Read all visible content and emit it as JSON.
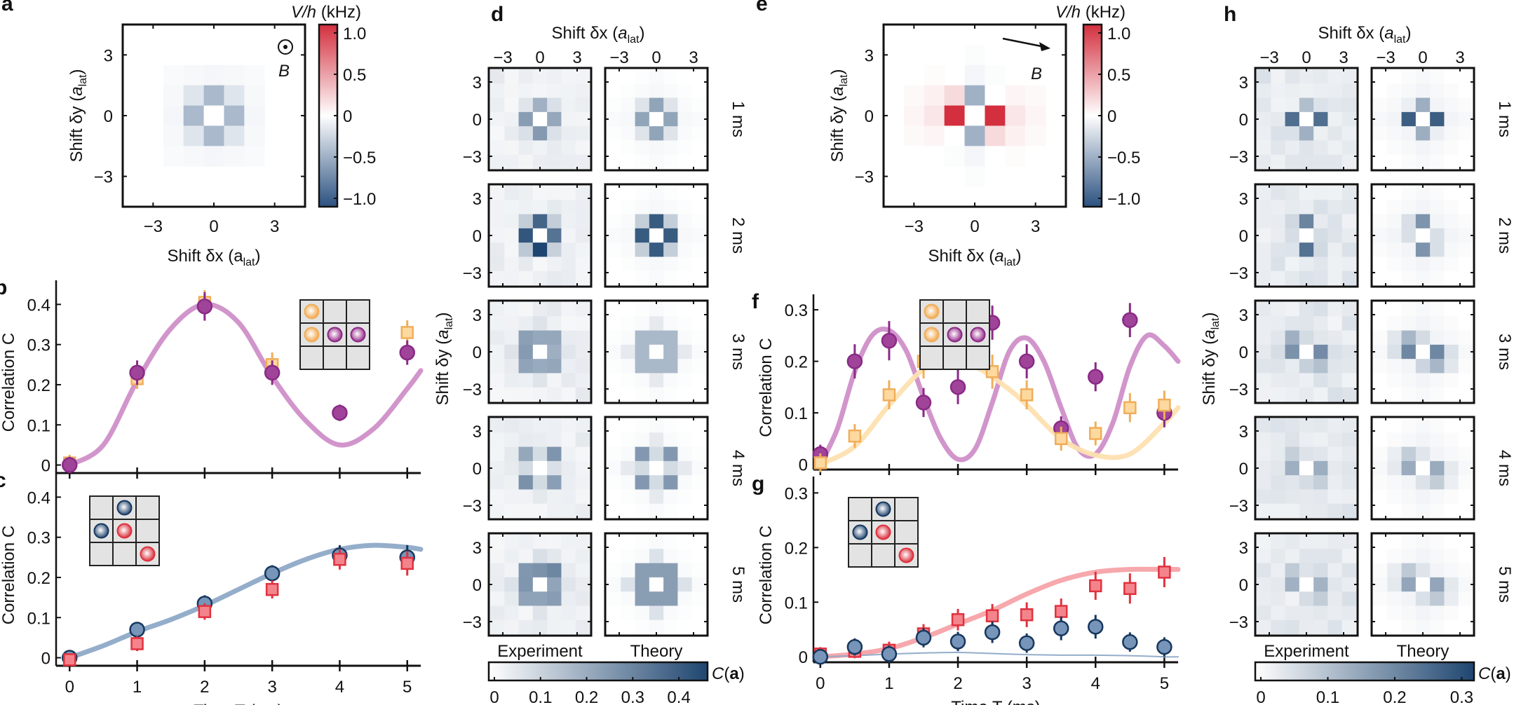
{
  "chart_data": [
    {
      "id": "a",
      "panel_label": "a",
      "type": "heatmap",
      "title": "",
      "xlabel": "Shift δx (a_lat)",
      "ylabel": "Shift δy (a_lat)",
      "xticks": [
        "-3",
        "0",
        "3"
      ],
      "yticks": [
        "3",
        "0",
        "-3"
      ],
      "xlim": [
        -4.5,
        4.5
      ],
      "ylim": [
        -4.5,
        4.5
      ],
      "annotation": "B (out of plane, ⊙)",
      "colorbar": {
        "label": "V/h (kHz)",
        "ticks": [
          "1.0",
          "0.5",
          "0",
          "-0.5",
          "-1.0"
        ],
        "range": [
          -1.0,
          1.0
        ]
      },
      "grid_extent": [
        -2,
        2
      ],
      "values_rows_top_to_bottom": [
        [
          -0.03,
          -0.04,
          -0.05,
          -0.04,
          -0.03
        ],
        [
          -0.04,
          -0.15,
          -0.4,
          -0.15,
          -0.04
        ],
        [
          -0.05,
          -0.4,
          0.0,
          -0.4,
          -0.05
        ],
        [
          -0.04,
          -0.15,
          -0.4,
          -0.15,
          -0.04
        ],
        [
          -0.03,
          -0.04,
          -0.05,
          -0.04,
          -0.03
        ]
      ]
    },
    {
      "id": "b",
      "panel_label": "b",
      "type": "scatter",
      "xlabel": "",
      "ylabel": "Correlation C",
      "xlim": [
        -0.2,
        5.2
      ],
      "ylim": [
        -0.02,
        0.46
      ],
      "yticks": [
        "0",
        "0.1",
        "0.2",
        "0.3",
        "0.4"
      ],
      "inset": "3x3 lattice: orange atoms at (r0,c0),(r1,c0); purple atoms at (r1,c1),(r1,c2)",
      "series": [
        {
          "name": "orange squares",
          "marker": "square",
          "x": [
            0,
            1,
            2,
            3,
            5
          ],
          "y": [
            0.005,
            0.215,
            0.405,
            0.25,
            0.33
          ],
          "err": [
            0.01,
            0.015,
            0.02,
            0.02,
            0.02
          ]
        },
        {
          "name": "purple circles",
          "marker": "circle",
          "x": [
            0,
            1,
            2,
            3,
            4,
            5
          ],
          "y": [
            0.0,
            0.23,
            0.395,
            0.23,
            0.13,
            0.28
          ],
          "err": [
            0.01,
            0.02,
            0.025,
            0.02,
            0.01,
            0.02
          ]
        },
        {
          "name": "theory band (purple)",
          "marker": "band",
          "x": [
            0,
            0.5,
            1,
            1.5,
            2,
            2.5,
            3,
            3.5,
            4,
            4.5,
            5,
            5.2
          ],
          "y": [
            0.0,
            0.05,
            0.21,
            0.34,
            0.4,
            0.355,
            0.22,
            0.11,
            0.05,
            0.09,
            0.19,
            0.235
          ]
        }
      ]
    },
    {
      "id": "c",
      "panel_label": "c",
      "type": "scatter",
      "xlabel": "Time T (ms)",
      "ylabel": "Correlation C",
      "xlim": [
        -0.2,
        5.2
      ],
      "ylim": [
        -0.02,
        0.46
      ],
      "xticks": [
        "0",
        "1",
        "2",
        "3",
        "4",
        "5"
      ],
      "yticks": [
        "0",
        "0.1",
        "0.2",
        "0.3",
        "0.4"
      ],
      "inset": "3x3 lattice: blue atoms at (r0,c1),(r1,c0); red atoms at (r1,c1),(r2,c2)",
      "series": [
        {
          "name": "blue circles",
          "marker": "circle",
          "x": [
            0,
            1,
            2,
            3,
            4,
            5
          ],
          "y": [
            0.0,
            0.07,
            0.135,
            0.21,
            0.255,
            0.25
          ],
          "err": [
            0.005,
            0.008,
            0.01,
            0.01,
            0.015,
            0.02
          ]
        },
        {
          "name": "red squares",
          "marker": "square",
          "x": [
            0,
            1,
            2,
            3,
            4,
            5
          ],
          "y": [
            -0.005,
            0.035,
            0.115,
            0.17,
            0.245,
            0.235
          ],
          "err": [
            0.005,
            0.008,
            0.01,
            0.012,
            0.015,
            0.02
          ]
        },
        {
          "name": "theory band (blue)",
          "marker": "band",
          "x": [
            0,
            0.5,
            1,
            1.5,
            2,
            2.5,
            3,
            3.5,
            4,
            4.5,
            5,
            5.2
          ],
          "y": [
            0.0,
            0.03,
            0.065,
            0.095,
            0.13,
            0.17,
            0.21,
            0.245,
            0.27,
            0.28,
            0.275,
            0.27
          ]
        }
      ]
    },
    {
      "id": "d",
      "panel_label": "d",
      "type": "heatmap",
      "xlabel": "Shift δx (a_lat)",
      "ylabel": "Shift δy (a_lat)",
      "xticks": [
        "-3",
        "0",
        "3"
      ],
      "yticks": [
        "3",
        "0",
        "-3"
      ],
      "columns": [
        "Experiment",
        "Theory"
      ],
      "rows": [
        "1 ms",
        "2 ms",
        "3 ms",
        "4 ms",
        "5 ms"
      ],
      "colorbar": {
        "label": "C(a)",
        "ticks": [
          "0",
          "0.1",
          "0.2",
          "0.3",
          "0.4"
        ],
        "range": [
          0,
          0.45
        ]
      },
      "pattern_peak_values": {
        "1 ms": {
          "experiment": 0.22,
          "theory": 0.22,
          "pattern": "nearest-neighbour cross"
        },
        "2 ms": {
          "experiment": 0.4,
          "theory": 0.4,
          "pattern": "nearest-neighbour cross"
        },
        "3 ms": {
          "experiment": 0.25,
          "theory": 0.2,
          "pattern": "ring 3x3"
        },
        "4 ms": {
          "experiment": 0.24,
          "theory": 0.25,
          "pattern": "diagonal neighbours"
        },
        "5 ms": {
          "experiment": 0.3,
          "theory": 0.28,
          "pattern": "ring 3x3 with diagonals"
        }
      }
    },
    {
      "id": "e",
      "panel_label": "e",
      "type": "heatmap",
      "xlabel": "Shift δx (a_lat)",
      "ylabel": "Shift δy (a_lat)",
      "xticks": [
        "-3",
        "0",
        "3"
      ],
      "yticks": [
        "3",
        "0",
        "-3"
      ],
      "xlim": [
        -4.5,
        4.5
      ],
      "ylim": [
        -4.5,
        4.5
      ],
      "annotation": "B (in-plane arrow)",
      "colorbar": {
        "label": "V/h (kHz)",
        "ticks": [
          "1.0",
          "0.5",
          "0",
          "-0.5",
          "-1.0"
        ],
        "range": [
          -1.0,
          1.0
        ]
      },
      "grid_extent": [
        -3,
        3
      ],
      "values_rows_top_to_bottom": [
        [
          0,
          0,
          0,
          -0.02,
          0,
          0,
          0
        ],
        [
          0,
          0.02,
          0,
          -0.05,
          -0.02,
          0,
          0
        ],
        [
          0.03,
          0.07,
          0.18,
          -0.45,
          0.0,
          0.05,
          0.03
        ],
        [
          0.05,
          0.12,
          1.0,
          0.0,
          1.0,
          0.12,
          0.05
        ],
        [
          0.03,
          0.05,
          0.0,
          -0.45,
          0.18,
          0.07,
          0.03
        ],
        [
          0,
          0,
          -0.02,
          -0.05,
          0,
          0.02,
          0
        ],
        [
          0,
          0,
          0,
          -0.02,
          0,
          0,
          0
        ]
      ]
    },
    {
      "id": "f",
      "panel_label": "f",
      "type": "scatter",
      "xlabel": "",
      "ylabel": "Correlation C",
      "xlim": [
        -0.1,
        5.2
      ],
      "ylim": [
        -0.01,
        0.33
      ],
      "yticks": [
        "0",
        "0.1",
        "0.2",
        "0.3"
      ],
      "inset": "3x3 lattice: orange atoms at (r0,c0),(r1,c0); purple atoms at (r1,c1),(r1,c2)",
      "series": [
        {
          "name": "purple circles",
          "marker": "circle",
          "x": [
            0,
            0.5,
            1,
            1.5,
            2,
            2.5,
            3,
            3.5,
            4,
            4.5,
            5
          ],
          "y": [
            0.02,
            0.2,
            0.24,
            0.12,
            0.15,
            0.275,
            0.2,
            0.07,
            0.17,
            0.28,
            0.1
          ],
          "err": [
            0.01,
            0.025,
            0.03,
            0.02,
            0.025,
            0.025,
            0.025,
            0.015,
            0.02,
            0.025,
            0.02
          ]
        },
        {
          "name": "orange squares",
          "marker": "square",
          "x": [
            0,
            0.5,
            1,
            1.5,
            2,
            2.5,
            3,
            3.5,
            4,
            4.5,
            5
          ],
          "y": [
            0.003,
            0.055,
            0.135,
            0.2,
            0.225,
            0.18,
            0.135,
            0.05,
            0.06,
            0.11,
            0.115
          ],
          "err": [
            0.01,
            0.015,
            0.02,
            0.025,
            0.03,
            0.025,
            0.02,
            0.015,
            0.015,
            0.02,
            0.02
          ]
        },
        {
          "name": "theory band (purple)",
          "marker": "band",
          "x": [
            0,
            0.25,
            0.5,
            0.75,
            1,
            1.25,
            1.5,
            1.75,
            2,
            2.25,
            2.5,
            2.75,
            3,
            3.25,
            3.5,
            3.75,
            4,
            4.25,
            4.5,
            4.75,
            5,
            5.2
          ],
          "y": [
            0.0,
            0.07,
            0.18,
            0.25,
            0.26,
            0.22,
            0.13,
            0.05,
            0.01,
            0.03,
            0.12,
            0.22,
            0.245,
            0.2,
            0.11,
            0.03,
            0.02,
            0.08,
            0.19,
            0.25,
            0.23,
            0.2
          ]
        },
        {
          "name": "theory band (orange)",
          "marker": "band",
          "x": [
            0,
            0.5,
            1,
            1.5,
            1.85,
            2.25,
            2.75,
            3,
            3.5,
            4,
            4.5,
            5,
            5.2
          ],
          "y": [
            0.0,
            0.035,
            0.115,
            0.185,
            0.2,
            0.19,
            0.145,
            0.115,
            0.05,
            0.018,
            0.02,
            0.08,
            0.11
          ]
        }
      ]
    },
    {
      "id": "g",
      "panel_label": "g",
      "type": "scatter",
      "xlabel": "Time T (ms)",
      "ylabel": "Correlation C",
      "xlim": [
        -0.1,
        5.2
      ],
      "ylim": [
        -0.01,
        0.33
      ],
      "xticks": [
        "0",
        "1",
        "2",
        "3",
        "4",
        "5"
      ],
      "yticks": [
        "0",
        "0.1",
        "0.2",
        "0.3"
      ],
      "inset": "3x3 lattice: blue atoms at (r0,c1),(r1,c0); red atoms at (r1,c1),(r2,c2)",
      "series": [
        {
          "name": "red squares",
          "marker": "square",
          "x": [
            0,
            0.5,
            1,
            1.5,
            2,
            2.5,
            3,
            3.5,
            4,
            4.5,
            5
          ],
          "y": [
            0.005,
            0.01,
            0.012,
            0.042,
            0.068,
            0.075,
            0.077,
            0.083,
            0.13,
            0.125,
            0.155
          ],
          "err": [
            0.005,
            0.005,
            0.008,
            0.01,
            0.012,
            0.014,
            0.015,
            0.016,
            0.018,
            0.02,
            0.02
          ]
        },
        {
          "name": "blue circles",
          "marker": "circle",
          "x": [
            0,
            0.5,
            1,
            1.5,
            2,
            2.5,
            3,
            3.5,
            4,
            4.5,
            5
          ],
          "y": [
            0.0,
            0.018,
            0.005,
            0.035,
            0.028,
            0.045,
            0.025,
            0.052,
            0.055,
            0.027,
            0.018
          ],
          "err": [
            0.005,
            0.008,
            0.008,
            0.01,
            0.01,
            0.012,
            0.01,
            0.014,
            0.014,
            0.01,
            0.01
          ]
        },
        {
          "name": "theory band (red)",
          "marker": "band",
          "x": [
            0,
            0.5,
            1,
            1.5,
            2,
            2.5,
            3,
            3.5,
            4,
            4.5,
            5,
            5.2
          ],
          "y": [
            0.0,
            0.005,
            0.015,
            0.035,
            0.06,
            0.085,
            0.115,
            0.14,
            0.155,
            0.16,
            0.16,
            0.16
          ]
        },
        {
          "name": "theory line (blue)",
          "marker": "line",
          "x": [
            0,
            0.5,
            1,
            1.5,
            2,
            2.5,
            3,
            3.5,
            4,
            4.5,
            5,
            5.2
          ],
          "y": [
            0.0,
            0.002,
            0.005,
            0.007,
            0.008,
            0.006,
            0.004,
            0.003,
            0.003,
            0.002,
            0.0,
            0.0
          ]
        }
      ]
    },
    {
      "id": "h",
      "panel_label": "h",
      "type": "heatmap",
      "xlabel": "Shift δx (a_lat)",
      "ylabel": "Shift δy (a_lat)",
      "xticks": [
        "-3",
        "0",
        "3"
      ],
      "yticks": [
        "3",
        "0",
        "-3"
      ],
      "columns": [
        "Experiment",
        "Theory"
      ],
      "rows": [
        "1 ms",
        "2 ms",
        "3 ms",
        "4 ms",
        "5 ms"
      ],
      "colorbar": {
        "label": "C(a)",
        "ticks": [
          "0",
          "0.1",
          "0.2",
          "0.3"
        ],
        "range": [
          0,
          0.31
        ]
      },
      "pattern_peak_values": {
        "1 ms": {
          "experiment": 0.25,
          "theory": 0.27,
          "pattern": "horizontal neighbours strong, vertical weak"
        },
        "2 ms": {
          "experiment": 0.22,
          "theory": 0.18,
          "pattern": "vertical neighbours"
        },
        "3 ms": {
          "experiment": 0.2,
          "theory": 0.2,
          "pattern": "anti-diagonal pairs"
        },
        "4 ms": {
          "experiment": 0.15,
          "theory": 0.14,
          "pattern": "anti-diagonal spread"
        },
        "5 ms": {
          "experiment": 0.15,
          "theory": 0.15,
          "pattern": "anti-diagonal spread"
        }
      }
    }
  ],
  "labels": {
    "shift_dx": "Shift δx (",
    "shift_dy": "Shift δy (",
    "a": "a",
    "lat": "lat",
    "close": ")",
    "corr": "Correlation C",
    "time": "Time T (ms)",
    "vh": "V/h (kHz)",
    "B": "B",
    "ca": "C(a)",
    "experiment": "Experiment",
    "theory": "Theory"
  }
}
